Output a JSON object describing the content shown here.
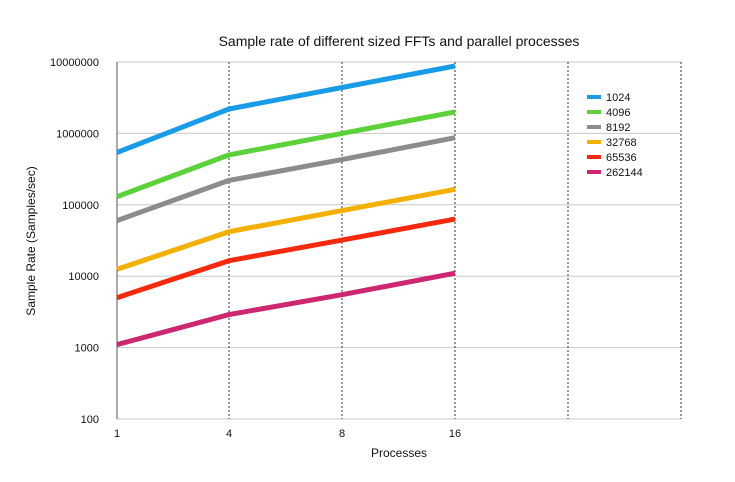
{
  "chart_data": {
    "type": "line",
    "title": "Sample rate of different sized FFTs and parallel processes",
    "xlabel": "Processes",
    "ylabel": "Sample Rate (Samples/sec)",
    "y_scale": "log",
    "ylim": [
      100,
      10000000
    ],
    "y_ticks": [
      "10000000",
      "1000000",
      "100000",
      "10000",
      "1000",
      "100"
    ],
    "x_ticks": [
      "1",
      "4",
      "8",
      "16"
    ],
    "x_gridlines_dotted": true,
    "legend_position": "top-right",
    "series": [
      {
        "name": "1024",
        "color": "#1a9be8",
        "values": [
          540000,
          2200000,
          4400000,
          8800000
        ]
      },
      {
        "name": "4096",
        "color": "#5bd13a",
        "values": [
          130000,
          500000,
          1000000,
          2000000
        ]
      },
      {
        "name": "8192",
        "color": "#8c8c8c",
        "values": [
          60000,
          220000,
          430000,
          870000
        ]
      },
      {
        "name": "32768",
        "color": "#f4b000",
        "values": [
          12500,
          42000,
          83000,
          165000
        ]
      },
      {
        "name": "65536",
        "color": "#f5290e",
        "values": [
          5000,
          16500,
          32000,
          63000
        ]
      },
      {
        "name": "262144",
        "color": "#cc2770",
        "values": [
          1100,
          2900,
          5500,
          11000
        ]
      }
    ]
  }
}
